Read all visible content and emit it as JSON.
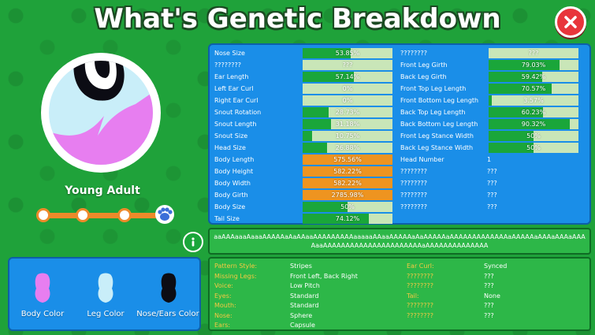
{
  "title": "What's Genetic Breakdown",
  "icons": {
    "close": "close-x-icon",
    "info": "info-icon",
    "paw": "paw-icon"
  },
  "colors": {
    "accent_orange": "#ee8a2a",
    "panel_blue": "#1a8ee8",
    "bar_green": "#1aa63a",
    "trait_label": "#f5c842",
    "body_color": "#e77ef0",
    "leg_color": "#c9eef9",
    "nose_ears_color": "#0c0c14"
  },
  "pet": {
    "age_stage": "Young Adult",
    "age_progress_step": 4,
    "age_steps": 4
  },
  "swatches": [
    {
      "label": "Body Color",
      "color": "#e77ef0"
    },
    {
      "label": "Leg Color",
      "color": "#c9eef9"
    },
    {
      "label": "Nose/Ears Color",
      "color": "#0c0c14"
    }
  ],
  "stats_left": [
    {
      "label": "Nose Size",
      "value": "53.85%",
      "fill": 53.85
    },
    {
      "label": "????????",
      "value": "???",
      "fill": 0
    },
    {
      "label": "Ear Length",
      "value": "57.14%",
      "fill": 57.14
    },
    {
      "label": "Left Ear Curl",
      "value": "0%",
      "fill": 0
    },
    {
      "label": "Right Ear Curl",
      "value": "0%",
      "fill": 0
    },
    {
      "label": "Snout Rotation",
      "value": "28.73%",
      "fill": 28.73
    },
    {
      "label": "Snout Length",
      "value": "31.18%",
      "fill": 31.18
    },
    {
      "label": "Snout Size",
      "value": "10.75%",
      "fill": 10.75
    },
    {
      "label": "Head Size",
      "value": "26.88%",
      "fill": 26.88
    },
    {
      "label": "Body Length",
      "value": "575.56%",
      "fill": 100,
      "over": true
    },
    {
      "label": "Body Height",
      "value": "582.22%",
      "fill": 100,
      "over": true
    },
    {
      "label": "Body Width",
      "value": "582.22%",
      "fill": 100,
      "over": true
    },
    {
      "label": "Body Girth",
      "value": "2785.98%",
      "fill": 100,
      "over": true
    },
    {
      "label": "Body Size",
      "value": "50%",
      "fill": 50
    },
    {
      "label": "Tail Size",
      "value": "74.12%",
      "fill": 74.12
    }
  ],
  "stats_right": [
    {
      "label": "????????",
      "value": "???",
      "fill": 0,
      "bar": true
    },
    {
      "label": "Front Leg Girth",
      "value": "79.03%",
      "fill": 79.03,
      "bar": true
    },
    {
      "label": "Back Leg Girth",
      "value": "59.42%",
      "fill": 59.42,
      "bar": true
    },
    {
      "label": "Front Top Leg Length",
      "value": "70.57%",
      "fill": 70.57,
      "bar": true
    },
    {
      "label": "Front Bottom Leg Length",
      "value": "3.57%",
      "fill": 3.57,
      "bar": true
    },
    {
      "label": "Back Top Leg Length",
      "value": "60.23%",
      "fill": 60.23,
      "bar": true
    },
    {
      "label": "Back Bottom Leg Length",
      "value": "90.32%",
      "fill": 90.32,
      "bar": true
    },
    {
      "label": "Front Leg Stance Width",
      "value": "50%",
      "fill": 50,
      "bar": true
    },
    {
      "label": "Back Leg Stance Width",
      "value": "50%",
      "fill": 50,
      "bar": true
    },
    {
      "label": "Head Number",
      "value": "1",
      "bar": false
    },
    {
      "label": "????????",
      "value": "???",
      "bar": false
    },
    {
      "label": "????????",
      "value": "???",
      "bar": false
    },
    {
      "label": "????????",
      "value": "???",
      "bar": false
    },
    {
      "label": "????????",
      "value": "???",
      "bar": false
    }
  ],
  "dna_string": "aaAAAaaaAaaaAAAAAaAaAAaaAAAAAAAAAaaaaaAAaaAAAAAaAaAAAAAaAAAAAAAAAAAAAaAAAAAaAAAaAAAaAAAAaaAAAAAAAAAAAAAAAAAAAAAAaAAAAAAAAAAAAAA",
  "traits_left": [
    {
      "label": "Pattern Style:",
      "value": "Stripes"
    },
    {
      "label": "Missing Legs:",
      "value": "Front Left, Back Right"
    },
    {
      "label": "Voice:",
      "value": "Low Pitch"
    },
    {
      "label": "Eyes:",
      "value": "Standard"
    },
    {
      "label": "Mouth:",
      "value": "Standard"
    },
    {
      "label": "Nose:",
      "value": "Sphere"
    },
    {
      "label": "Ears:",
      "value": "Capsule"
    }
  ],
  "traits_right": [
    {
      "label": "Ear Curl:",
      "value": "Synced"
    },
    {
      "label": "????????",
      "value": "???"
    },
    {
      "label": "????????",
      "value": "???"
    },
    {
      "label": "Tail:",
      "value": "None"
    },
    {
      "label": "????????",
      "value": "???"
    },
    {
      "label": "????????",
      "value": "???"
    }
  ]
}
